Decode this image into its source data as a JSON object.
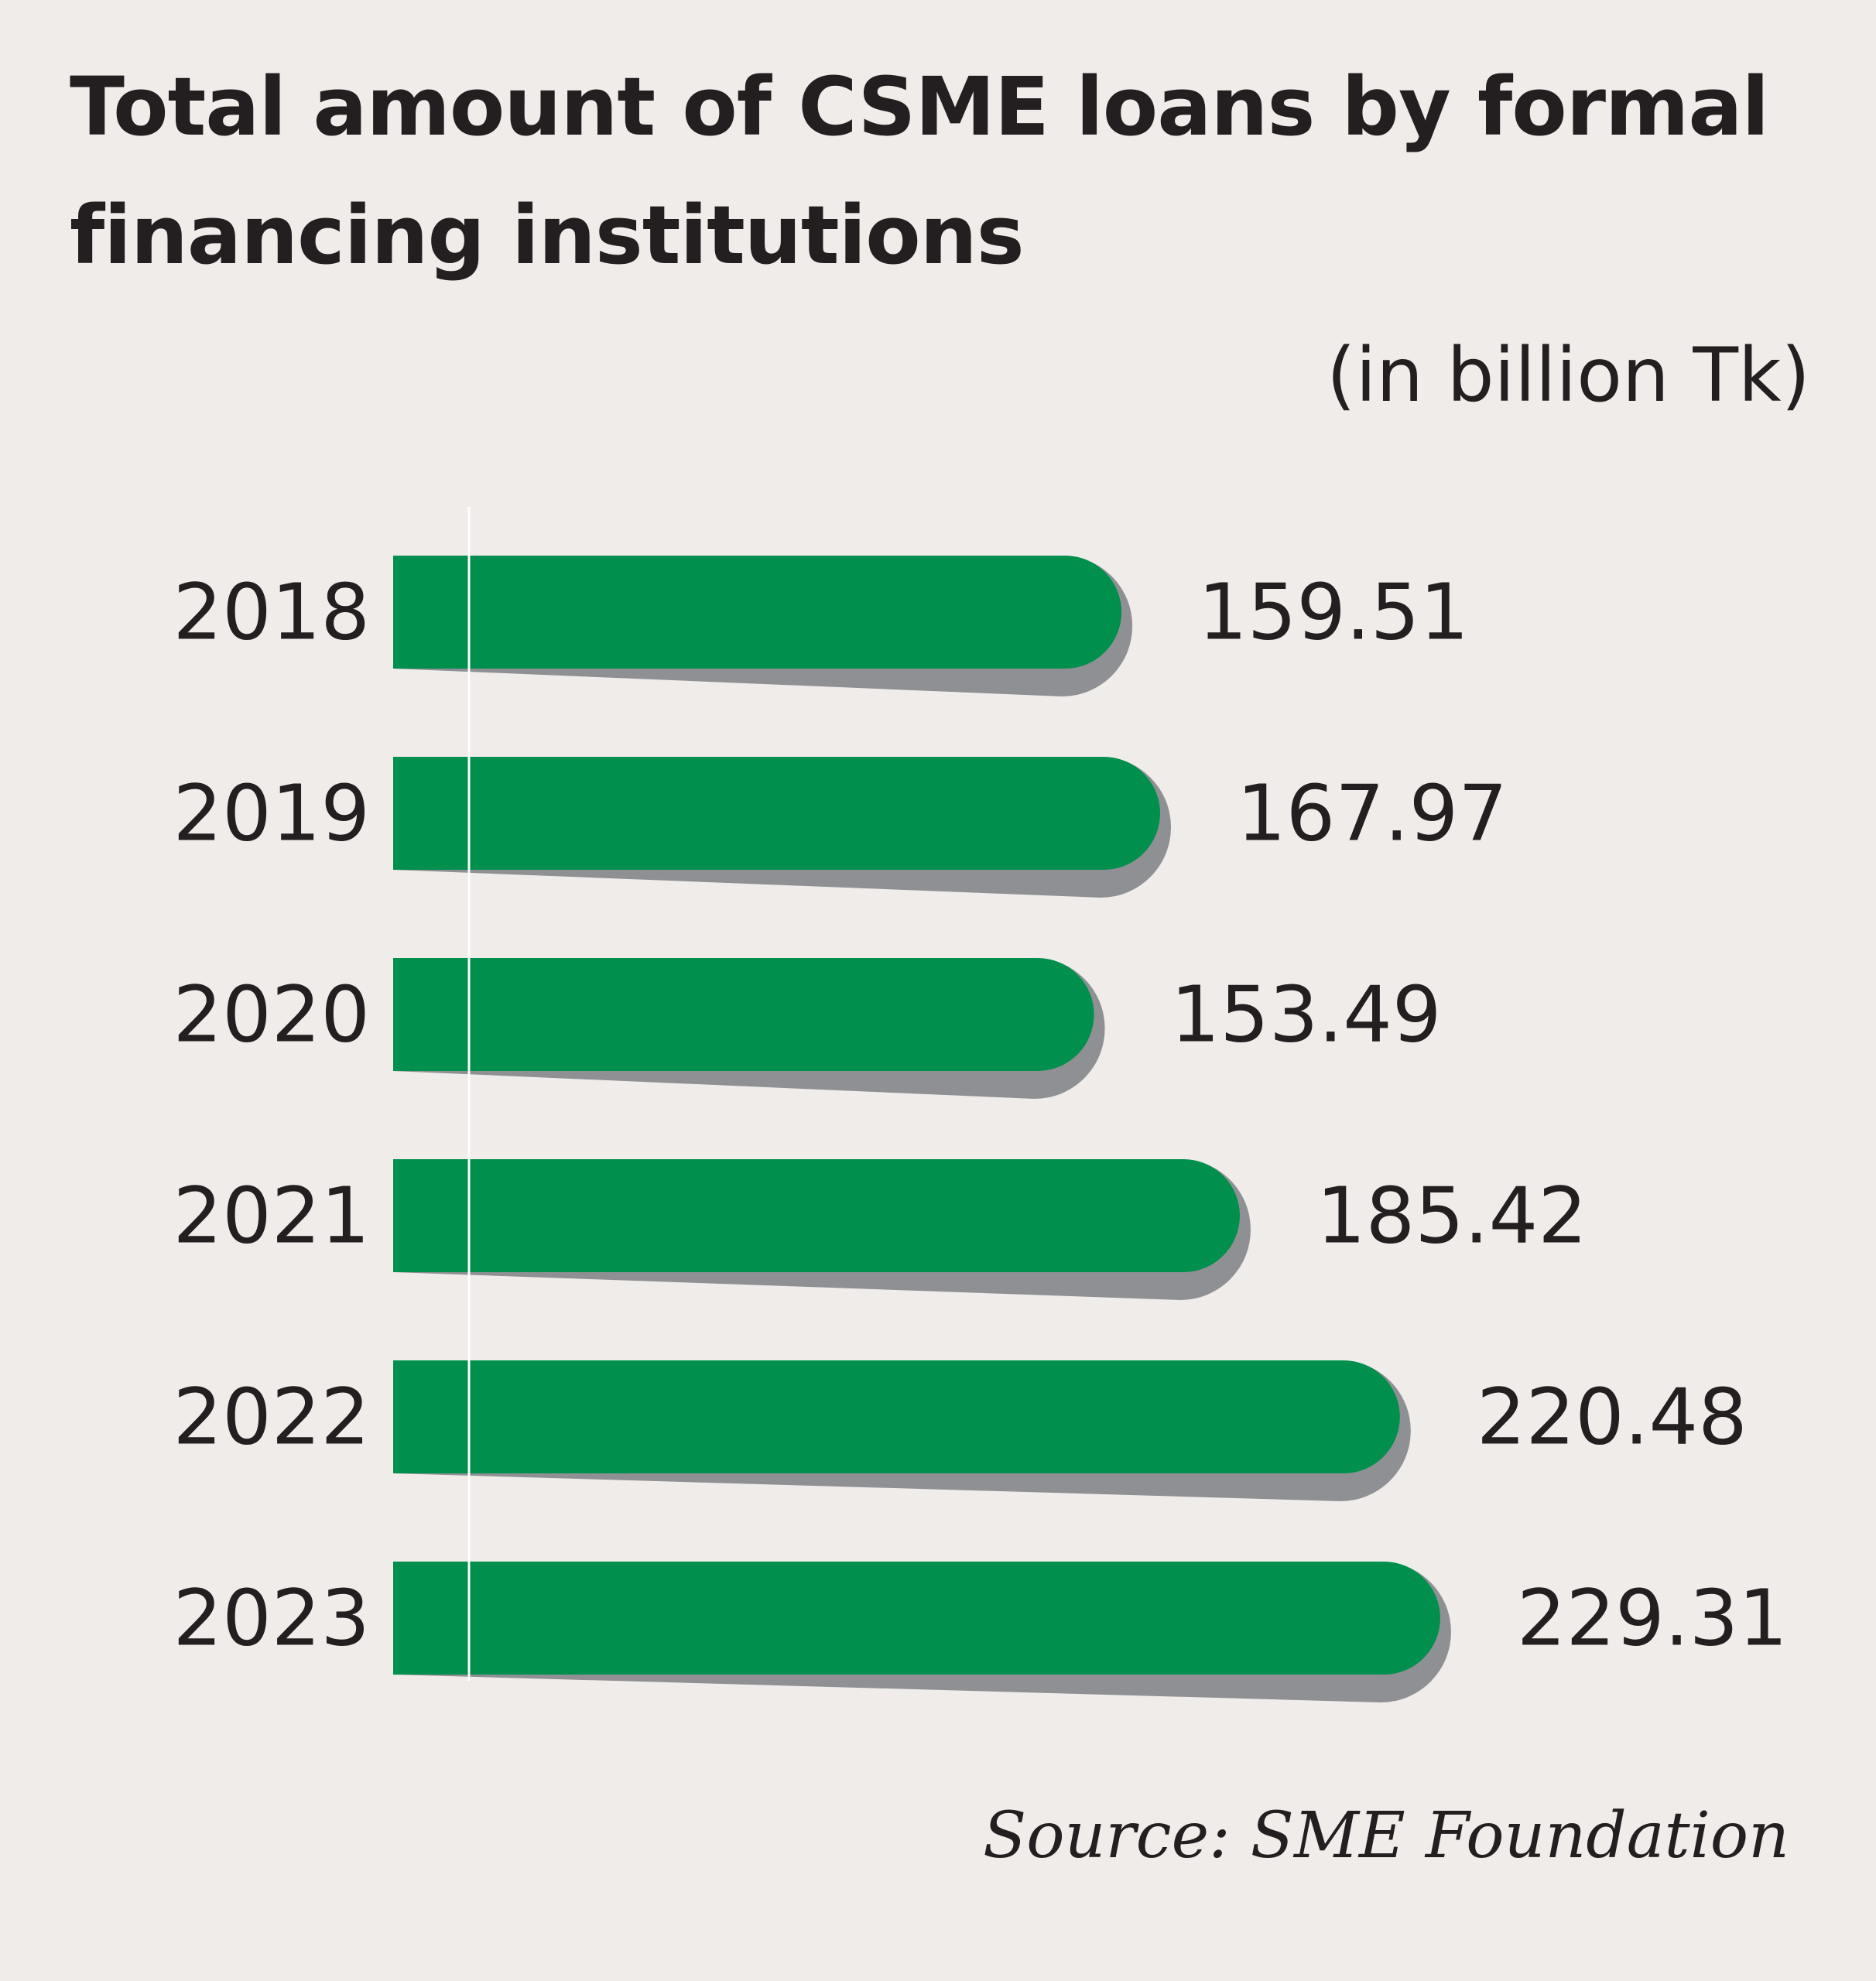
{
  "chart_data": {
    "type": "bar",
    "orientation": "horizontal",
    "title": "Total amount of CSME loans by formal financing institutions",
    "unit_label": "(in billion Tk)",
    "source": "Source: SME Foundation",
    "categories": [
      "2018",
      "2019",
      "2020",
      "2021",
      "2022",
      "2023"
    ],
    "values": [
      159.51,
      167.97,
      153.49,
      185.42,
      220.48,
      229.31
    ],
    "value_labels": [
      "159.51",
      "167.97",
      "153.49",
      "185.42",
      "220.48",
      "229.31"
    ],
    "xlim": [
      0,
      250
    ],
    "grid": false,
    "legend": "none",
    "colors": {
      "bar": "#008f4c",
      "shadow": "#8e9093",
      "text": "#231f20",
      "background": "#efecea",
      "axis_line": "#ffffff"
    }
  }
}
